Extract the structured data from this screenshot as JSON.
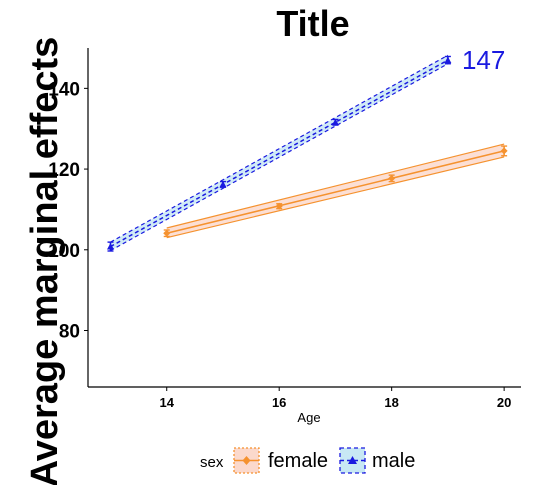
{
  "chart_data": {
    "type": "line",
    "title": "Title",
    "xlabel": "Age",
    "ylabel": "Average marginal effects",
    "xlim": [
      12.6,
      20.3
    ],
    "ylim": [
      66,
      150
    ],
    "xticks": [
      14,
      16,
      18,
      20
    ],
    "yticks": [
      80,
      100,
      120,
      140
    ],
    "grid": false,
    "legend": {
      "title": "sex",
      "position": "bottom"
    },
    "series": [
      {
        "name": "female",
        "color": "#f5922f",
        "fill": "#fbd9cc",
        "x": [
          14,
          16,
          18,
          20
        ],
        "values": [
          104.1,
          110.8,
          117.7,
          124.5
        ],
        "lower": [
          103.3,
          110.2,
          116.9,
          123.3
        ],
        "upper": [
          104.9,
          111.4,
          118.5,
          125.7
        ],
        "ci_low_line": [
          103.0,
          123.0
        ],
        "ci_high_line": [
          105.4,
          126.2
        ],
        "dash": "solid",
        "marker": "diamond"
      },
      {
        "name": "male",
        "color": "#1a1ae0",
        "fill": "#c8e8f4",
        "x": [
          13,
          15,
          17,
          19
        ],
        "values": [
          100.8,
          116.2,
          131.6,
          147.0
        ],
        "lower": [
          99.7,
          115.5,
          130.9,
          146.1
        ],
        "upper": [
          101.9,
          116.9,
          132.3,
          147.9
        ],
        "ci_low_line": [
          99.8,
          146.1
        ],
        "ci_high_line": [
          101.9,
          148.2
        ],
        "dash": "dashed",
        "marker": "triangle"
      }
    ],
    "annotations": [
      {
        "text": "147",
        "x": 19.25,
        "y": 147,
        "color": "#1a1ae0"
      }
    ]
  }
}
